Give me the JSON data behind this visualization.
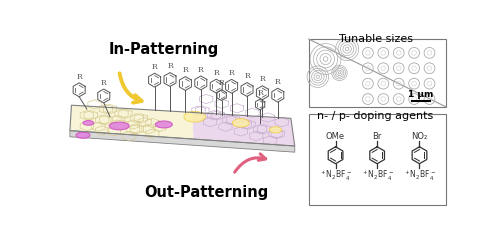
{
  "bg_color": "#ffffff",
  "in_patterning_text": "In-Patterning",
  "out_patterning_text": "Out-Patterning",
  "tunable_sizes_text": "Tunable sizes",
  "doping_agents_text": "n- / p- doping agents",
  "scale_bar_text": "1 μm",
  "ome_text": "OMe",
  "br_text": "Br",
  "no2_text": "NO₂",
  "n2bf4_text": "+N₂BF₄-",
  "yellow_color": "#f0c830",
  "yellow_fill": "#fdf0a0",
  "pink_arrow_color": "#e06080",
  "pink_spot_edge": "#d050c0",
  "pink_spot_fill": "#e080e0",
  "lavender_fill": "#ecd8ec",
  "honeycomb_fill": "#f8f4d8",
  "honeycomb_line": "#d8cc90",
  "lavender_hex_line": "#c8b0d0",
  "slab_edge": "#808080",
  "benzene_color": "#555555",
  "gray_circ": "#aaaaaa",
  "dark_text": "#111111"
}
